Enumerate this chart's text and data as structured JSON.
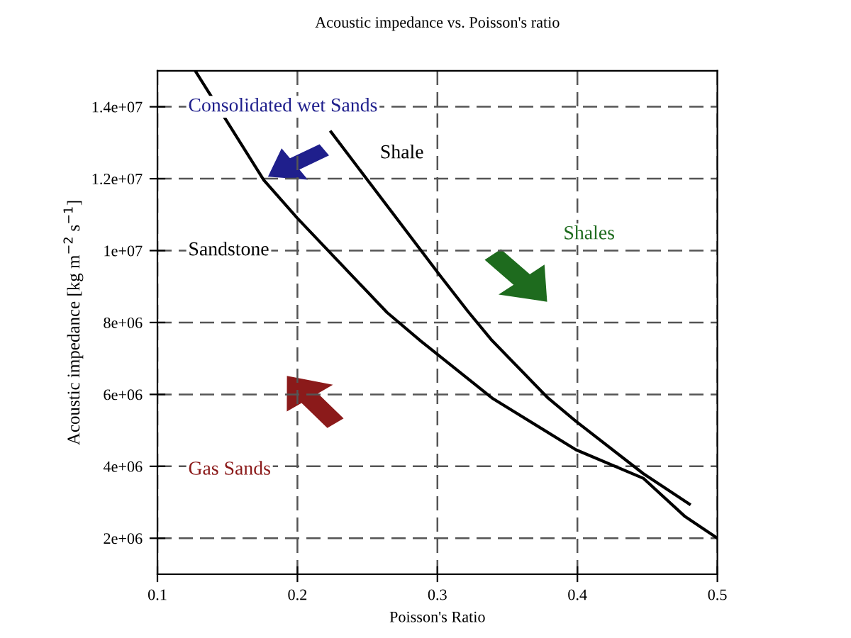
{
  "chart_data": {
    "type": "line",
    "title": "Acoustic impedance vs. Poisson's ratio",
    "xlabel": "Poisson's Ratio",
    "ylabel": "Acoustic impedance [kg m$^{−2}$ s$^{−1}$]",
    "series": [
      {
        "name": "Sandstone",
        "color": "#000000",
        "x": [
          0.127,
          0.176,
          0.2,
          0.264,
          0.288,
          0.339,
          0.399,
          0.447,
          0.477,
          0.5
        ],
        "values": [
          15000000,
          11960000,
          10900000,
          8280000,
          7490000,
          5900000,
          4460000,
          3670000,
          2600000,
          2000000
        ]
      },
      {
        "name": "Shale",
        "color": "#000000",
        "x": [
          0.224,
          0.302,
          0.322,
          0.339,
          0.379,
          0.399,
          0.447,
          0.48
        ],
        "values": [
          13300000,
          9300000,
          8300000,
          7500000,
          5900000,
          5250000,
          3800000,
          2950000
        ]
      }
    ],
    "annotations": [
      "Consolidated wet Sands",
      "Shales",
      "Gas Sands"
    ],
    "xlim": [
      0.1,
      0.5
    ],
    "xticks": [
      0.1,
      0.2,
      0.3,
      0.4,
      0.5
    ],
    "ylim": [
      1000000,
      15000000
    ],
    "yticks": [
      {
        "value": 2000000,
        "label": "2e+06"
      },
      {
        "value": 4000000,
        "label": "4e+06"
      },
      {
        "value": 6000000,
        "label": "6e+06"
      },
      {
        "value": 8000000,
        "label": "8e+06"
      },
      {
        "value": 10000000,
        "label": "1e+07"
      },
      {
        "value": 12000000,
        "label": "1.2e+07"
      },
      {
        "value": 14000000,
        "label": "1.4e+07"
      }
    ],
    "grid": true,
    "line_style": "solid",
    "marker": "none",
    "legend": false
  }
}
